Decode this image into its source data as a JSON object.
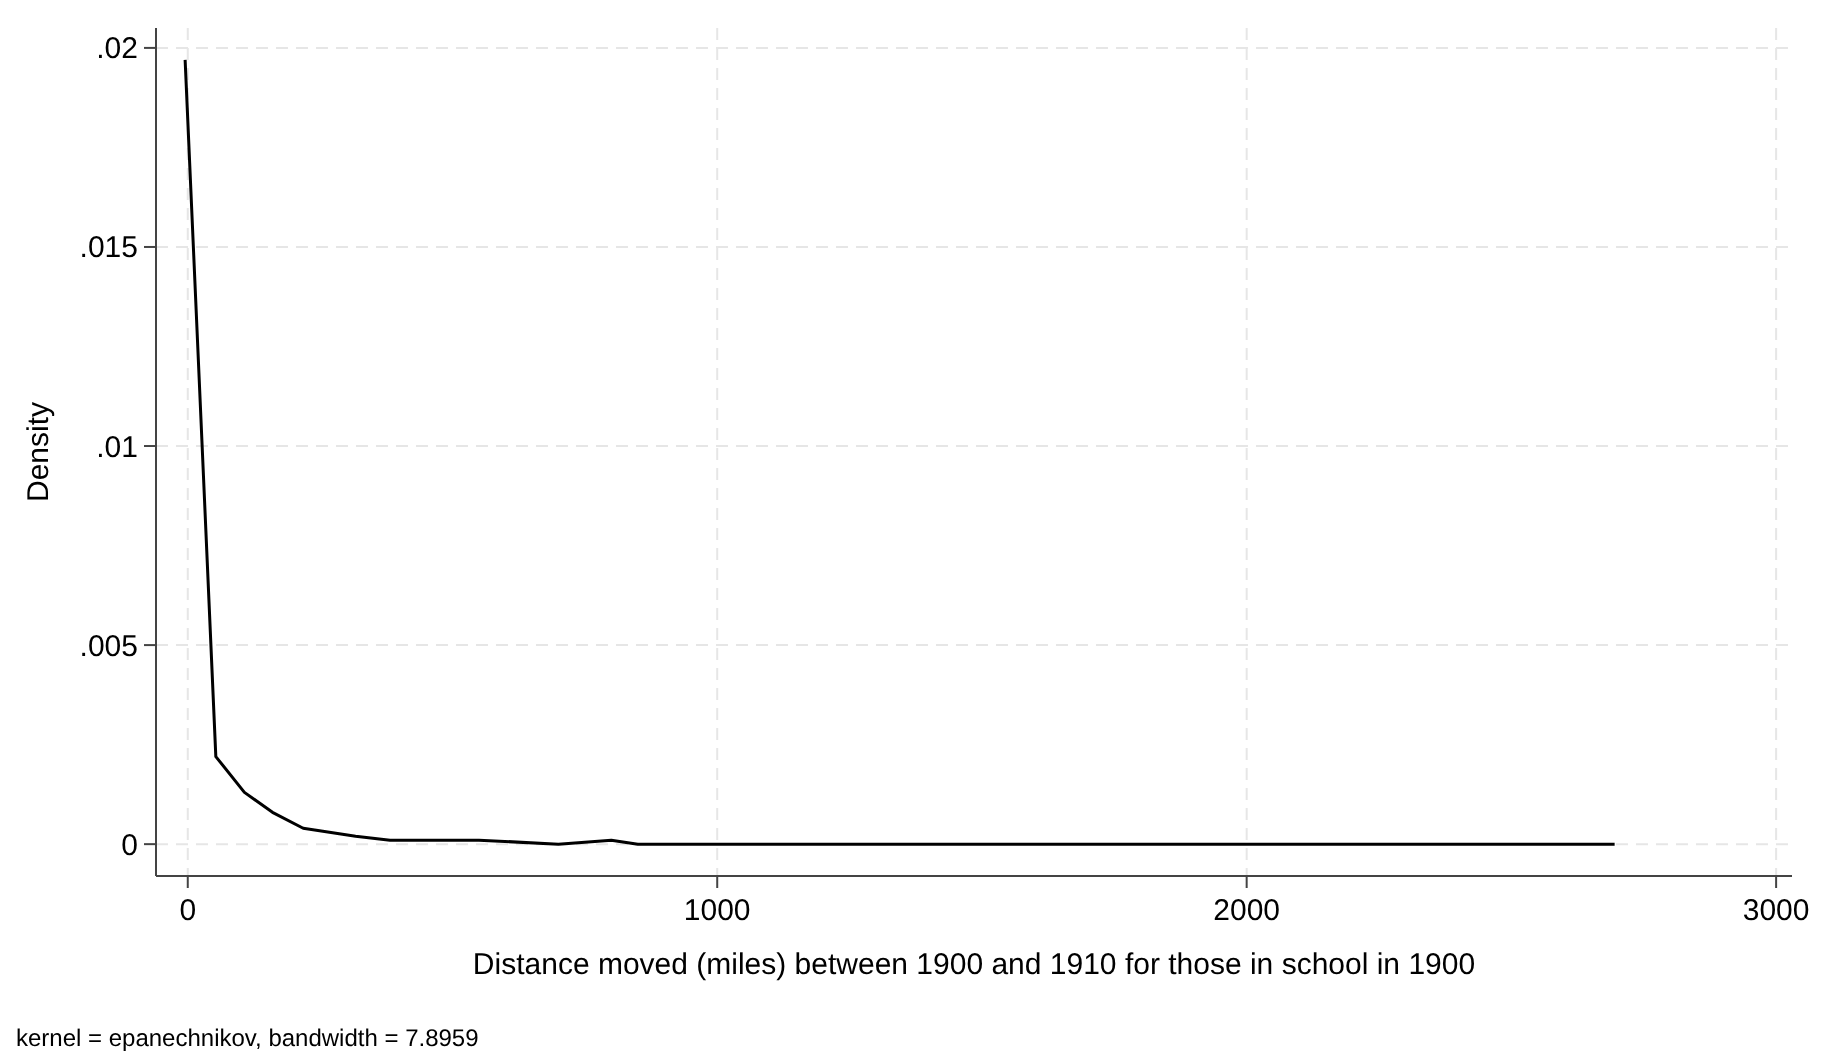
{
  "chart_data": {
    "type": "line",
    "xlabel": "Distance moved (miles) between 1900 and 1910 for those in school in 1900",
    "ylabel": "Density",
    "annotations": [
      "kernel = epanechnikov, bandwidth = 7.8959"
    ],
    "xlim": [
      -60,
      3030
    ],
    "ylim": [
      -0.0008,
      0.0205
    ],
    "xticks": [
      0,
      1000,
      2000,
      3000
    ],
    "yticks": [
      0,
      {
        "value": 0.005,
        "label": ".005"
      },
      {
        "value": 0.01,
        "label": ".01"
      },
      {
        "value": 0.015,
        "label": ".015"
      },
      {
        "value": 0.02,
        "label": ".02"
      }
    ],
    "grid": true,
    "marker": "none",
    "line_style": "solid",
    "series": [
      {
        "color": "#000000",
        "x": [
          -5,
          53,
          107,
          160,
          218,
          317,
          382,
          440,
          550,
          700,
          800,
          850,
          1000,
          1100,
          1200,
          1400,
          1450,
          1600,
          1650,
          1750,
          1900,
          1950,
          2100,
          2300,
          2500,
          2695
        ],
        "values": [
          0.0197,
          0.0022,
          0.0013,
          0.0008,
          0.0004,
          0.0002,
          0.0001,
          0.0001,
          0.0001,
          0,
          0.0001,
          0,
          0,
          0,
          0,
          0,
          0,
          0,
          0,
          0,
          0,
          0,
          0,
          0,
          0,
          0
        ]
      }
    ]
  }
}
